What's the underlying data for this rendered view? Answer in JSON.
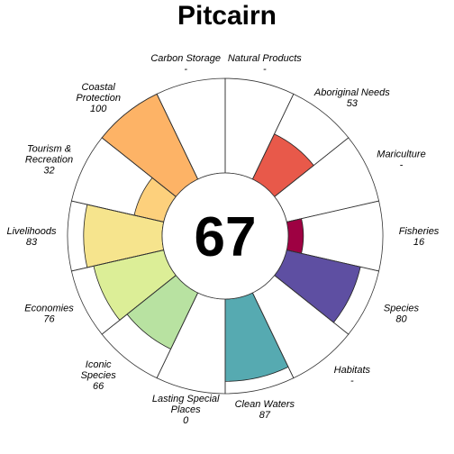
{
  "chart_data": {
    "type": "polar-bar",
    "title": "Pitcairn",
    "center_value": "67",
    "value_max": 100,
    "segments": [
      {
        "name": "Fisheries",
        "label_lines": [
          "Fisheries"
        ],
        "value_text": "16",
        "value": 16,
        "color": "#9E0142"
      },
      {
        "name": "Mariculture",
        "label_lines": [
          "Mariculture"
        ],
        "value_text": "-",
        "value": null,
        "color": "#D53E4F"
      },
      {
        "name": "Aboriginal Needs",
        "label_lines": [
          "Aboriginal Needs"
        ],
        "value_text": "53",
        "value": 53,
        "color": "#E8594A"
      },
      {
        "name": "Natural Products",
        "label_lines": [
          "Natural Products"
        ],
        "value_text": "-",
        "value": null,
        "color": "#F46D43"
      },
      {
        "name": "Carbon Storage",
        "label_lines": [
          "Carbon Storage"
        ],
        "value_text": "-",
        "value": null,
        "color": "#FDAE61"
      },
      {
        "name": "Coastal Protection",
        "label_lines": [
          "Coastal",
          "Protection"
        ],
        "value_text": "100",
        "value": 100,
        "color": "#FDB366"
      },
      {
        "name": "Tourism & Recreation",
        "label_lines": [
          "Tourism &",
          "Recreation"
        ],
        "value_text": "32",
        "value": 32,
        "color": "#FDD07C"
      },
      {
        "name": "Livelihoods",
        "label_lines": [
          "Livelihoods"
        ],
        "value_text": "83",
        "value": 83,
        "color": "#F6E48D"
      },
      {
        "name": "Economies",
        "label_lines": [
          "Economies"
        ],
        "value_text": "76",
        "value": 76,
        "color": "#DCEE97"
      },
      {
        "name": "Iconic Species",
        "label_lines": [
          "Iconic",
          "Species"
        ],
        "value_text": "66",
        "value": 66,
        "color": "#B8E2A1"
      },
      {
        "name": "Lasting Special Places",
        "label_lines": [
          "Lasting Special",
          "Places"
        ],
        "value_text": "0",
        "value": 0,
        "color": "#88CFA4"
      },
      {
        "name": "Clean Waters",
        "label_lines": [
          "Clean Waters"
        ],
        "value_text": "87",
        "value": 87,
        "color": "#56AAB1"
      },
      {
        "name": "Habitats",
        "label_lines": [
          "Habitats"
        ],
        "value_text": "-",
        "value": null,
        "color": "#3F88BD"
      },
      {
        "name": "Species",
        "label_lines": [
          "Species"
        ],
        "value_text": "80",
        "value": 80,
        "color": "#5E4FA2"
      }
    ]
  }
}
